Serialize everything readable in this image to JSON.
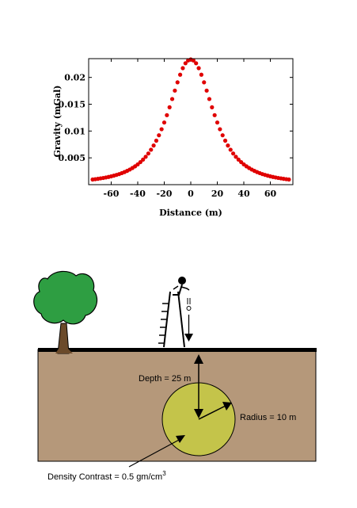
{
  "chart_data": {
    "type": "scatter",
    "title": "",
    "xlabel": "Distance (m)",
    "ylabel": "Gravity (mGal)",
    "xlim": [
      -77,
      77
    ],
    "ylim": [
      0,
      0.0235
    ],
    "x_ticks": [
      -60,
      -40,
      -20,
      0,
      20,
      40,
      60
    ],
    "y_ticks": [
      0.005,
      0.01,
      0.015,
      0.02
    ],
    "y_tick_labels": [
      "0.005",
      "0.01",
      "0.015",
      "0.02"
    ],
    "marker_color": "#e00000",
    "grid": false,
    "series": [
      {
        "x": [
          -74,
          -72,
          -70,
          -68,
          -66,
          -64,
          -62,
          -60,
          -58,
          -56,
          -54,
          -52,
          -50,
          -48,
          -46,
          -44,
          -42,
          -40,
          -38,
          -36,
          -34,
          -32,
          -30,
          -28,
          -26,
          -24,
          -22,
          -20,
          -18,
          -16,
          -14,
          -12,
          -10,
          -8,
          -6,
          -4,
          -2,
          0,
          2,
          4,
          6,
          8,
          10,
          12,
          14,
          16,
          18,
          20,
          22,
          24,
          26,
          28,
          30,
          32,
          34,
          36,
          38,
          40,
          42,
          44,
          46,
          48,
          50,
          52,
          54,
          56,
          58,
          60,
          62,
          64,
          66,
          68,
          70,
          72,
          74
        ],
        "y": [
          0.00096,
          0.00102,
          0.00109,
          0.00117,
          0.00125,
          0.00134,
          0.00144,
          0.00155,
          0.00168,
          0.00182,
          0.00197,
          0.00215,
          0.00235,
          0.00257,
          0.00282,
          0.0031,
          0.00342,
          0.00378,
          0.0042,
          0.00467,
          0.0052,
          0.00581,
          0.00651,
          0.0073,
          0.0082,
          0.00921,
          0.01034,
          0.01159,
          0.01296,
          0.01443,
          0.01597,
          0.01754,
          0.01908,
          0.02051,
          0.02173,
          0.02264,
          0.02317,
          0.02335,
          0.02317,
          0.02264,
          0.02173,
          0.02051,
          0.01908,
          0.01754,
          0.01597,
          0.01443,
          0.01296,
          0.01159,
          0.01034,
          0.00921,
          0.0082,
          0.0073,
          0.00651,
          0.00581,
          0.0052,
          0.00467,
          0.0042,
          0.00378,
          0.00342,
          0.0031,
          0.00282,
          0.00257,
          0.00235,
          0.00215,
          0.00197,
          0.00182,
          0.00168,
          0.00155,
          0.00144,
          0.00134,
          0.00125,
          0.00117,
          0.00109,
          0.00102,
          0.00096
        ]
      }
    ]
  },
  "diagram": {
    "depth_label": "Depth = 25 m",
    "radius_label": "Radius = 10 m",
    "density_label_main": "Density Contrast = 0.5 gm/cm",
    "density_label_sup": "3",
    "colors": {
      "soil": "#b5987a",
      "body": "#c4c44a",
      "tree_foliage": "#2e9e42",
      "tree_trunk": "#6b4a2a",
      "ground_line": "#000000"
    }
  }
}
